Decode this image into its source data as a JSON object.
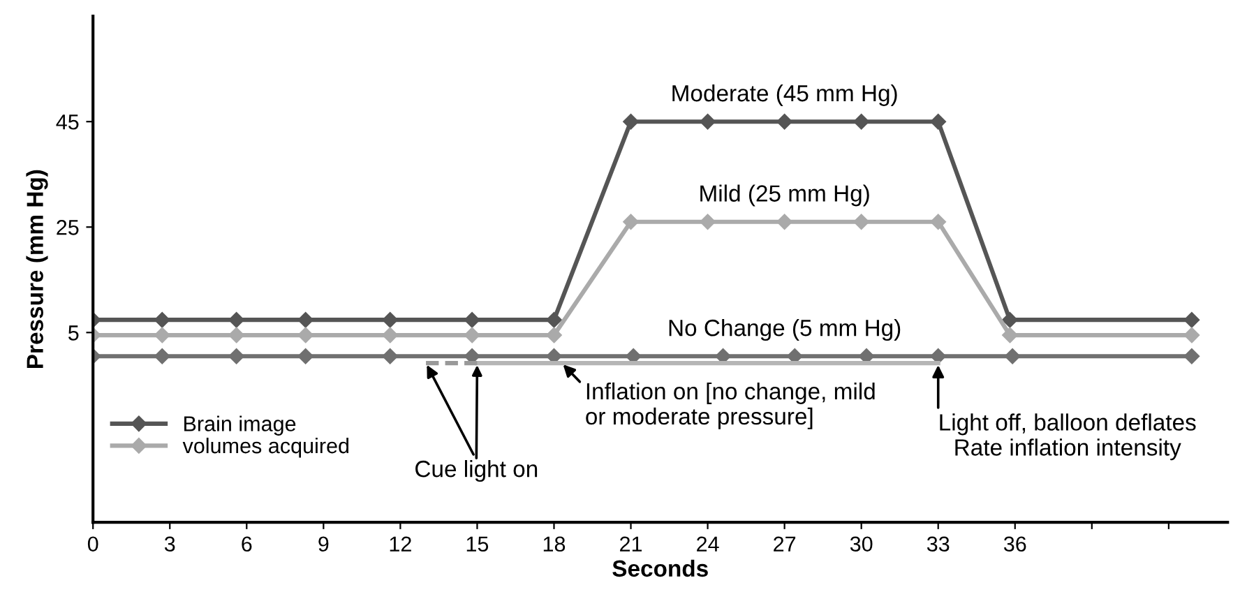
{
  "chart_data": {
    "type": "line",
    "xlabel": "Seconds",
    "ylabel": "Pressure (mm Hg)",
    "xlim": [
      0,
      44.3
    ],
    "ylim": [
      -31,
      65
    ],
    "xticks": [
      0,
      3,
      6,
      9,
      12,
      15,
      18,
      21,
      24,
      27,
      30,
      33,
      36,
      {
        "value": 39,
        "label": null
      },
      {
        "value": 42,
        "label": null
      }
    ],
    "yticks": [
      5,
      25,
      45
    ],
    "grid": false,
    "legend": "lower left",
    "marker": "diamond",
    "line_style": "solid",
    "series": [
      {
        "name": "Brain image",
        "color": "#555555",
        "x": [
          0,
          2.7,
          5.6,
          8.3,
          11.6,
          14.8,
          18,
          21,
          24,
          27,
          30,
          33,
          35.8,
          42.9
        ],
        "values": [
          7.4,
          7.4,
          7.4,
          7.4,
          7.4,
          7.4,
          7.4,
          45,
          45,
          45,
          45,
          45,
          7.4,
          7.4
        ]
      },
      {
        "name": "volumes acquired",
        "color": "#aaaaaa",
        "x": [
          0,
          2.7,
          5.6,
          8.3,
          11.6,
          14.8,
          18,
          21,
          24,
          27,
          30,
          33,
          35.8,
          42.9
        ],
        "values": [
          4.5,
          4.5,
          4.5,
          4.5,
          4.5,
          4.5,
          4.5,
          26,
          26,
          26,
          26,
          26,
          4.5,
          4.5
        ]
      },
      {
        "color": "#707070",
        "x": [
          0,
          2.7,
          5.6,
          8.3,
          11.6,
          14.8,
          18,
          21.1,
          24.6,
          27.4,
          30.2,
          33,
          35.9,
          42.9
        ],
        "values": [
          0.5,
          0.5,
          0.5,
          0.5,
          0.5,
          0.5,
          0.5,
          0.5,
          0.5,
          0.5,
          0.5,
          0.5,
          0.5,
          0.5
        ]
      },
      {
        "color": "#b5b5b5",
        "marker": "none",
        "x": [
          15,
          33
        ],
        "values": [
          -0.8,
          -0.8
        ]
      },
      {
        "color": "#999999",
        "marker": "none",
        "line_style": "dashed",
        "x": [
          13,
          15
        ],
        "values": [
          -0.8,
          -0.8
        ]
      }
    ],
    "annotations": [
      {
        "text": "Moderate (45 mm Hg)",
        "x": 27,
        "y": 45
      },
      {
        "text": "Mild (25 mm Hg)",
        "x": 27,
        "y": 26
      },
      {
        "text": "No Change (5 mm Hg)",
        "x": 27,
        "y": 0.5
      },
      {
        "text": "Cue light on",
        "x": 13,
        "y": -0.8
      },
      {
        "text": "Inflation on [no change, mild\nor moderate pressure]",
        "x": 18.3,
        "y": -0.8
      },
      {
        "text": "Light off, balloon deflates\nRate inflation intensity",
        "x": 33,
        "y": -0.8
      }
    ]
  }
}
